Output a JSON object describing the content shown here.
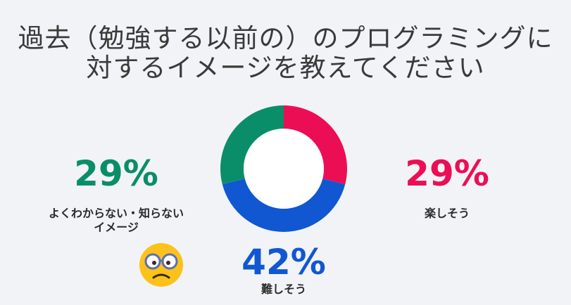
{
  "title": "過去（勉強する以前の）のプログラミングに対するイメージを教えてください",
  "chart_data": {
    "type": "pie",
    "donut": true,
    "title": "過去（勉強する以前の）のプログラミングに対するイメージを教えてください",
    "slices": [
      {
        "label": "楽しそう",
        "value": 29,
        "display": "29%",
        "color": "#ec0e55"
      },
      {
        "label": "難しそう",
        "value": 42,
        "display": "42%",
        "color": "#1057d1"
      },
      {
        "label": "よくわからない・知らないイメージ",
        "value": 29,
        "display": "29%",
        "color": "#0a8e6a"
      }
    ],
    "order": "clockwise-from-top"
  },
  "labels": {
    "fun_pct": "29%",
    "fun_label": "楽しそう",
    "hard_pct": "42%",
    "hard_label": "難しそう",
    "unknown_pct": "29%",
    "unknown_label_line1": "よくわからない・知らない",
    "unknown_label_line2": "イメージ"
  },
  "emoji_icon": "confused-face-with-glasses-icon"
}
